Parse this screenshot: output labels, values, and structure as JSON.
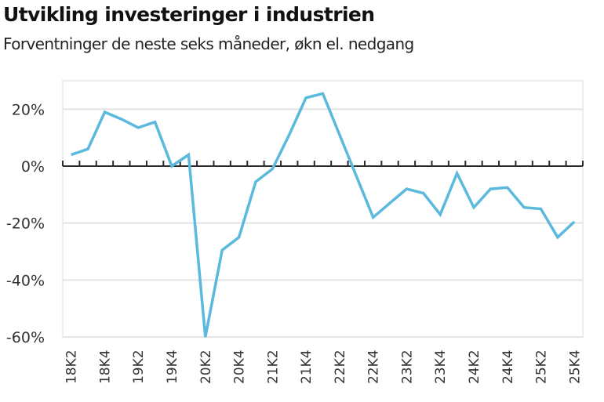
{
  "header": {
    "title": "Utvikling investeringer i industrien",
    "subtitle": "Forventninger de neste seks måneder, økn el. nedgang"
  },
  "colors": {
    "line": "#5ab9dc",
    "zero_axis": "#2b2b2b",
    "grid": "#e3e3e3",
    "frame": "#e6e6e6",
    "text": "#333333"
  },
  "chart_data": {
    "type": "line",
    "title": "Utvikling investeringer i industrien",
    "subtitle": "Forventninger de neste seks måneder, økn el. nedgang",
    "xlabel": "",
    "ylabel": "",
    "ylim": [
      -60,
      30
    ],
    "yticks": [
      20,
      0,
      -20,
      -40,
      -60
    ],
    "ytick_labels": [
      "20%",
      "0%",
      "-20%",
      "-40%",
      "-60%"
    ],
    "grid": true,
    "legend": "none",
    "x": [
      "18K2",
      "18K3",
      "18K4",
      "19K1",
      "19K2",
      "19K3",
      "19K4",
      "20K1",
      "20K2",
      "20K3",
      "20K4",
      "21K1",
      "21K2",
      "21K3",
      "21K4",
      "22K1",
      "22K2",
      "22K3",
      "22K4",
      "23K1",
      "23K2",
      "23K3",
      "23K4",
      "24K1",
      "24K2",
      "24K3",
      "24K4",
      "25K1",
      "25K2",
      "25K3",
      "25K4"
    ],
    "xtick_labels": [
      "18K2",
      "18K4",
      "19K2",
      "19K4",
      "20K2",
      "20K4",
      "21K2",
      "21K4",
      "22K2",
      "22K4",
      "23K2",
      "23K4",
      "24K2",
      "24K4",
      "25K2",
      "25K4"
    ],
    "series": [
      {
        "name": "Investeringer i industrien",
        "values": [
          4,
          6,
          19,
          16.5,
          13.5,
          15.5,
          0,
          4,
          -60,
          -29.5,
          -25,
          -5.5,
          -1,
          11,
          24,
          25.5,
          11,
          -3.5,
          -18,
          -13,
          -8,
          -9.5,
          -17,
          -2.5,
          -14.5,
          -8,
          -7.5,
          -14.5,
          -15,
          -25,
          -19.5
        ]
      }
    ]
  }
}
